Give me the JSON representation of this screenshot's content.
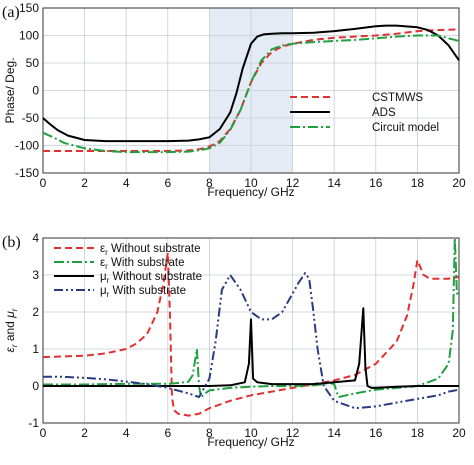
{
  "chart_data": [
    {
      "panel_label": "(a)",
      "type": "line",
      "xlabel": "Frequency/ GHz",
      "ylabel": "Phase/ Deg.",
      "xlim": [
        0,
        20
      ],
      "ylim": [
        -150,
        150
      ],
      "xticks": [
        "0",
        "2",
        "4",
        "6",
        "8",
        "10",
        "12",
        "14",
        "16",
        "18",
        "20"
      ],
      "yticks": [
        "-150",
        "-100",
        "-50",
        "0",
        "50",
        "100",
        "150"
      ],
      "grid": true,
      "legend_position": "center-right",
      "shaded_band": [
        8,
        12
      ],
      "shaded_color": "#e4ebf5",
      "series": [
        {
          "name": "CSTMWS",
          "color": "#e03030",
          "dash": "dash",
          "x": [
            0,
            2,
            4,
            6,
            7,
            7.5,
            8,
            8.5,
            9,
            9.5,
            10,
            10.5,
            11,
            11.5,
            12,
            13,
            14,
            15,
            16,
            17,
            18,
            19,
            20
          ],
          "y": [
            -110,
            -110,
            -110,
            -110,
            -109,
            -107,
            -102,
            -92,
            -70,
            -35,
            15,
            50,
            70,
            80,
            85,
            92,
            96,
            98,
            100,
            103,
            108,
            110,
            111
          ]
        },
        {
          "name": "ADS",
          "color": "#000000",
          "dash": "solid",
          "x": [
            0,
            0.3,
            0.7,
            1.2,
            2,
            3,
            4,
            5,
            6,
            7,
            7.5,
            8,
            8.5,
            9,
            9.3,
            9.6,
            10,
            10.3,
            10.6,
            11,
            11.5,
            12,
            13,
            14,
            15,
            16,
            16.5,
            17,
            18,
            18.5,
            19,
            19.5,
            20
          ],
          "y": [
            -50,
            -60,
            -72,
            -82,
            -90,
            -92,
            -92,
            -92,
            -92,
            -91,
            -89,
            -85,
            -70,
            -40,
            -5,
            40,
            85,
            98,
            102,
            103,
            104,
            104,
            105,
            108,
            112,
            117,
            118,
            118,
            115,
            110,
            100,
            82,
            55
          ]
        },
        {
          "name": "Circuit model",
          "color": "#20a040",
          "dash": "dashdot",
          "x": [
            0,
            0.5,
            1,
            2,
            3,
            4,
            5,
            6,
            7,
            7.5,
            8,
            8.5,
            9,
            9.5,
            10,
            10.5,
            11,
            11.5,
            12,
            13,
            14,
            15,
            16,
            17,
            18,
            19,
            19.5,
            20
          ],
          "y": [
            -77,
            -85,
            -95,
            -105,
            -110,
            -112,
            -112,
            -112,
            -111,
            -109,
            -105,
            -95,
            -72,
            -35,
            15,
            55,
            75,
            82,
            85,
            88,
            90,
            92,
            95,
            98,
            100,
            100,
            95,
            90
          ]
        }
      ]
    },
    {
      "panel_label": "(b)",
      "type": "line",
      "xlabel": "Frequency/ GHz",
      "ylabel": "εr and μr",
      "ylabel_parts": {
        "eps": "ε",
        "mu": "μ",
        "sub": "r",
        "and": " and "
      },
      "xlim": [
        0,
        20
      ],
      "ylim": [
        -1,
        4
      ],
      "xticks": [
        "0",
        "2",
        "4",
        "6",
        "8",
        "10",
        "12",
        "14",
        "16",
        "18",
        "20"
      ],
      "yticks": [
        "-1",
        "0",
        "1",
        "2",
        "3",
        "4"
      ],
      "grid": true,
      "legend_position": "top-center",
      "series": [
        {
          "name": "εr Without substrate",
          "sym": "ε",
          "sub": "r",
          "text": " Without substrate",
          "color": "#e03030",
          "dash": "dash",
          "x": [
            0,
            1,
            2,
            3,
            4,
            4.5,
            5,
            5.5,
            5.8,
            6.0,
            6.1,
            6.2,
            6.3,
            6.5,
            7,
            7.5,
            8,
            9,
            10,
            11,
            12,
            13,
            14,
            15,
            16,
            17,
            17.5,
            17.8,
            18,
            18.3,
            18.6,
            19,
            19.5,
            20
          ],
          "y": [
            0.78,
            0.8,
            0.82,
            0.88,
            1.0,
            1.15,
            1.4,
            2.0,
            2.8,
            3.6,
            2.0,
            -0.3,
            -0.65,
            -0.75,
            -0.8,
            -0.75,
            -0.6,
            -0.4,
            -0.25,
            -0.15,
            -0.05,
            0.05,
            0.15,
            0.3,
            0.6,
            1.2,
            1.9,
            2.7,
            3.4,
            3.0,
            2.9,
            2.9,
            2.9,
            2.95
          ]
        },
        {
          "name": "εr With substrate",
          "sym": "ε",
          "sub": "r",
          "text": " With substrate",
          "color": "#20a040",
          "dash": "dashdot",
          "x": [
            0,
            1,
            2,
            3,
            4,
            5,
            6,
            6.5,
            7,
            7.2,
            7.4,
            7.5,
            7.6,
            7.8,
            8,
            9,
            10,
            11,
            12,
            13,
            13.8,
            14,
            14.2,
            15,
            16,
            17,
            18,
            19,
            19.5,
            19.7,
            19.8,
            19.9,
            20
          ],
          "y": [
            0.04,
            0.04,
            0.04,
            0.05,
            0.06,
            0.06,
            0.06,
            0.08,
            0.12,
            0.3,
            1.0,
            0.0,
            -0.3,
            -0.2,
            -0.12,
            -0.05,
            -0.02,
            0.0,
            0.0,
            0.02,
            0.08,
            0.05,
            -0.3,
            -0.2,
            -0.1,
            -0.05,
            0.0,
            0.2,
            0.6,
            1.5,
            4.0,
            2.5,
            2.5
          ]
        },
        {
          "name": "μr Without substrate",
          "sym": "μ",
          "sub": "r",
          "text": " Without substrate",
          "color": "#000000",
          "dash": "solid",
          "x": [
            0,
            2,
            4,
            6,
            8,
            9,
            9.7,
            9.9,
            10.0,
            10.1,
            10.3,
            11,
            12,
            13,
            14,
            15,
            15.2,
            15.4,
            15.5,
            15.6,
            15.8,
            16,
            17,
            18,
            19,
            20
          ],
          "y": [
            0,
            0,
            0,
            0,
            0,
            0.02,
            0.1,
            0.6,
            1.8,
            0.2,
            0.1,
            0.05,
            0.05,
            0.05,
            0.1,
            0.15,
            0.6,
            2.1,
            0.5,
            0.0,
            -0.05,
            -0.05,
            -0.02,
            0,
            0,
            0
          ]
        },
        {
          "name": "μr With substrate",
          "sym": "μ",
          "sub": "r",
          "text": " With substrate",
          "color": "#2a3a80",
          "dash": "dashdotdot",
          "x": [
            0,
            1,
            2,
            3,
            4,
            5,
            6,
            7,
            7.5,
            8,
            8.3,
            8.6,
            9,
            9.5,
            10,
            10.5,
            11,
            11.5,
            12,
            12.3,
            12.6,
            12.8,
            13.0,
            13.2,
            13.5,
            14,
            15,
            16,
            17,
            18,
            19,
            19.5,
            20
          ],
          "y": [
            0.25,
            0.25,
            0.22,
            0.18,
            0.12,
            0.05,
            -0.05,
            -0.2,
            -0.3,
            0.2,
            1.2,
            2.6,
            3.0,
            2.6,
            2.0,
            1.8,
            1.8,
            2.0,
            2.5,
            2.8,
            3.05,
            2.9,
            2.0,
            1.0,
            0.0,
            -0.4,
            -0.6,
            -0.55,
            -0.45,
            -0.35,
            -0.25,
            -0.15,
            -0.1
          ]
        }
      ]
    }
  ]
}
